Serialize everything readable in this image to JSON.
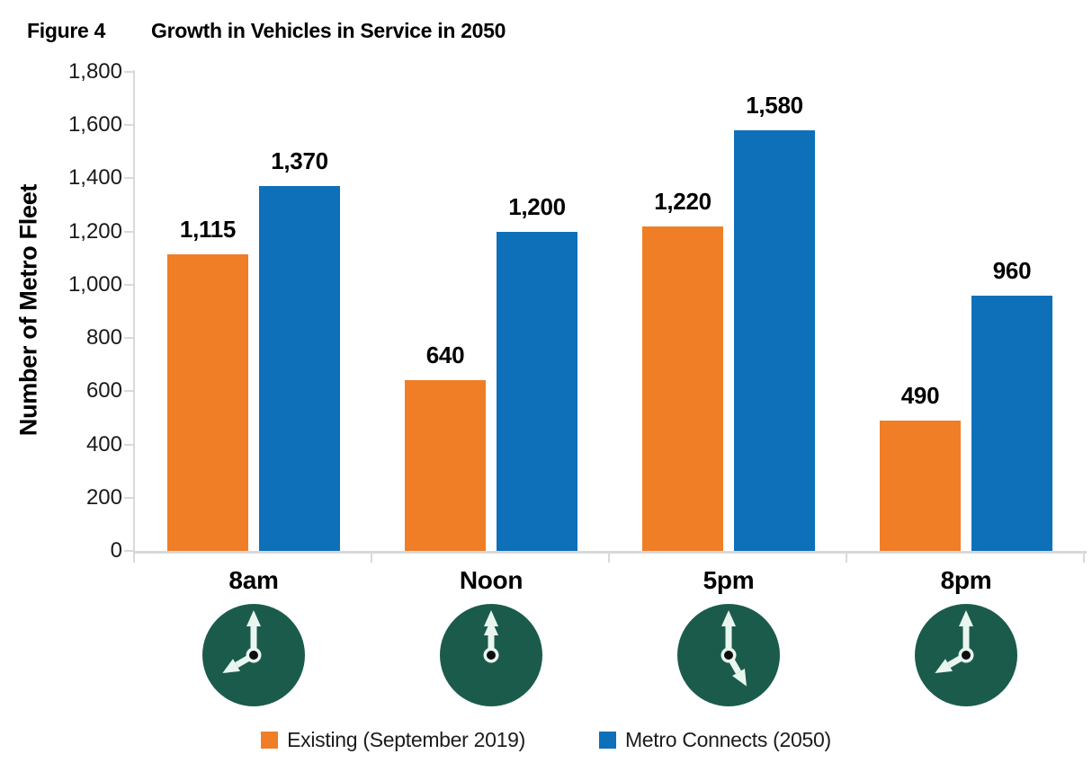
{
  "figure": {
    "label": "Figure 4",
    "title": "Growth in Vehicles in Service in 2050"
  },
  "chart_data": {
    "type": "bar",
    "title": "Growth in Vehicles in Service in 2050",
    "categories": [
      "8am",
      "Noon",
      "5pm",
      "8pm"
    ],
    "series": [
      {
        "name": "Existing (September 2019)",
        "color": "#F07E27",
        "values": [
          1115,
          640,
          1220,
          490
        ],
        "labels": [
          "1,115",
          "640",
          "1,220",
          "490"
        ]
      },
      {
        "name": "Metro Connects (2050)",
        "color": "#0E70B8",
        "values": [
          1370,
          1200,
          1580,
          960
        ],
        "labels": [
          "1,370",
          "1,200",
          "1,580",
          "960"
        ]
      }
    ],
    "xlabel": "",
    "ylabel": "Number of Metro Fleet",
    "ylim": [
      0,
      1800
    ],
    "yticks": [
      0,
      200,
      400,
      600,
      800,
      1000,
      1200,
      1400,
      1600,
      1800
    ],
    "ytick_labels": [
      "0",
      "200",
      "400",
      "600",
      "800",
      "1,000",
      "1,200",
      "1,400",
      "1,600",
      "1,800"
    ],
    "grid": false,
    "legend_position": "bottom",
    "axis_color": "#D9D9D9",
    "clock_icons": {
      "circle_color": "#1B5B4C",
      "hand_color": "#E9F6F0",
      "center_dot_color": "#0D0D0D",
      "items": [
        {
          "name": "clock-icon-8am",
          "hour_angle": 240,
          "minute_angle": 0
        },
        {
          "name": "clock-icon-noon",
          "hour_angle": 0,
          "minute_angle": 0
        },
        {
          "name": "clock-icon-5pm",
          "hour_angle": 150,
          "minute_angle": 0
        },
        {
          "name": "clock-icon-8pm",
          "hour_angle": 240,
          "minute_angle": 0
        }
      ]
    }
  }
}
